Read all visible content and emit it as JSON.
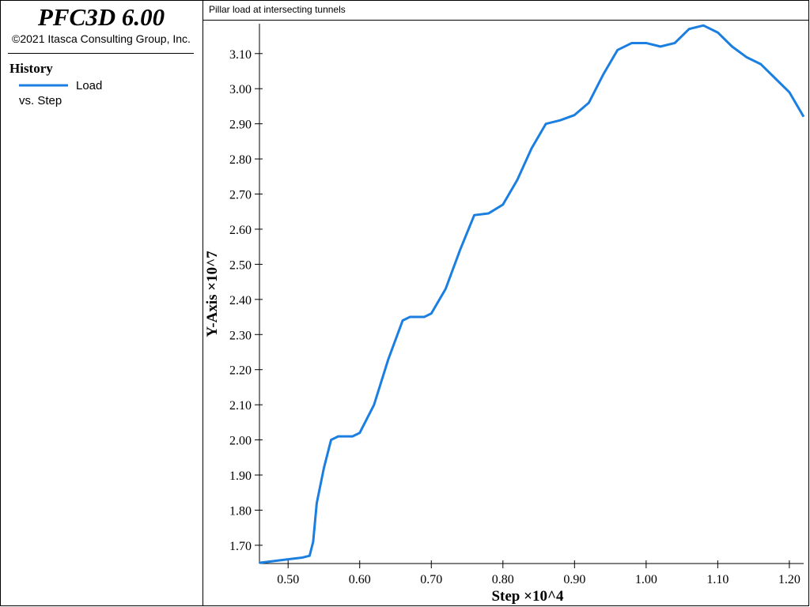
{
  "sidebar": {
    "product": "PFC3D 6.00",
    "copyright": "©2021 Itasca Consulting Group, Inc.",
    "heading": "History",
    "legend_note": "vs. Step"
  },
  "chart_data": {
    "type": "line",
    "title": "Pillar load at intersecting tunnels",
    "x_label": "Step ×10^4",
    "y_label": "Y-Axis ×10^7",
    "xlim": [
      0.46,
      1.22
    ],
    "ylim": [
      1.648,
      3.185
    ],
    "xticks": [
      {
        "value": 0.5,
        "label": "0.50"
      },
      {
        "value": 0.6,
        "label": "0.60"
      },
      {
        "value": 0.7,
        "label": "0.70"
      },
      {
        "value": 0.8,
        "label": "0.80"
      },
      {
        "value": 0.9,
        "label": "0.90"
      },
      {
        "value": 1.0,
        "label": "1.00"
      },
      {
        "value": 1.1,
        "label": "1.10"
      },
      {
        "value": 1.2,
        "label": "1.20"
      }
    ],
    "yticks": [
      {
        "value": 1.7,
        "label": "1.70"
      },
      {
        "value": 1.8,
        "label": "1.80"
      },
      {
        "value": 1.9,
        "label": "1.90"
      },
      {
        "value": 2.0,
        "label": "2.00"
      },
      {
        "value": 2.1,
        "label": "2.10"
      },
      {
        "value": 2.2,
        "label": "2.20"
      },
      {
        "value": 2.3,
        "label": "2.30"
      },
      {
        "value": 2.4,
        "label": "2.40"
      },
      {
        "value": 2.5,
        "label": "2.50"
      },
      {
        "value": 2.6,
        "label": "2.60"
      },
      {
        "value": 2.7,
        "label": "2.70"
      },
      {
        "value": 2.8,
        "label": "2.80"
      },
      {
        "value": 2.9,
        "label": "2.90"
      },
      {
        "value": 3.0,
        "label": "3.00"
      },
      {
        "value": 3.1,
        "label": "3.10"
      }
    ],
    "x": [
      0.46,
      0.5,
      0.52,
      0.53,
      0.535,
      0.54,
      0.55,
      0.56,
      0.57,
      0.59,
      0.6,
      0.62,
      0.64,
      0.66,
      0.67,
      0.69,
      0.7,
      0.72,
      0.74,
      0.76,
      0.78,
      0.8,
      0.82,
      0.84,
      0.86,
      0.88,
      0.9,
      0.92,
      0.94,
      0.96,
      0.98,
      1.0,
      1.02,
      1.04,
      1.06,
      1.08,
      1.1,
      1.12,
      1.14,
      1.16,
      1.18,
      1.2,
      1.22
    ],
    "series": [
      {
        "name": "Load",
        "color": "#1a7fe0",
        "values": [
          1.65,
          1.66,
          1.665,
          1.67,
          1.71,
          1.82,
          1.92,
          2.0,
          2.01,
          2.01,
          2.02,
          2.1,
          2.23,
          2.34,
          2.35,
          2.35,
          2.36,
          2.43,
          2.54,
          2.64,
          2.645,
          2.67,
          2.74,
          2.83,
          2.9,
          2.91,
          2.925,
          2.96,
          3.04,
          3.11,
          3.13,
          3.13,
          3.12,
          3.13,
          3.17,
          3.18,
          3.16,
          3.12,
          3.09,
          3.07,
          3.03,
          2.99,
          2.92
        ]
      }
    ]
  }
}
